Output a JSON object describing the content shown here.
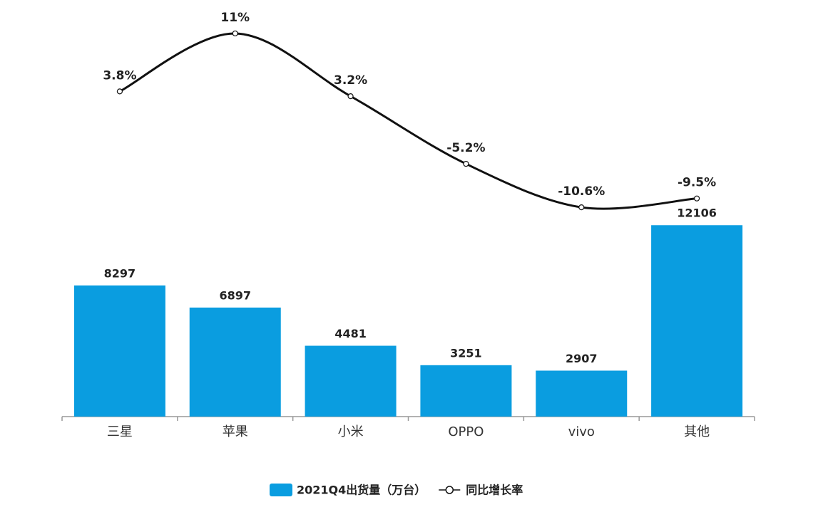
{
  "chart_data": {
    "type": "bar-line",
    "categories": [
      "三星",
      "苹果",
      "小米",
      "OPPO",
      "vivo",
      "其他"
    ],
    "series": [
      {
        "name": "2021Q4出货量（万台）",
        "type": "bar",
        "color": "#0a9de0",
        "values": [
          8297,
          6897,
          4481,
          3251,
          2907,
          12106
        ]
      },
      {
        "name": "同比增长率",
        "type": "line",
        "axis": "y2",
        "color": "#111111",
        "values": [
          3.8,
          11,
          3.2,
          -5.2,
          -10.6,
          -9.5
        ],
        "value_labels": [
          "3.8%",
          "11%",
          "3.2%",
          "-5.2%",
          "-10.6%",
          "-9.5%"
        ]
      }
    ],
    "ylim": [
      0,
      25000
    ],
    "y2lim": [
      -36.6,
      12.5
    ],
    "legend": "bottom"
  }
}
